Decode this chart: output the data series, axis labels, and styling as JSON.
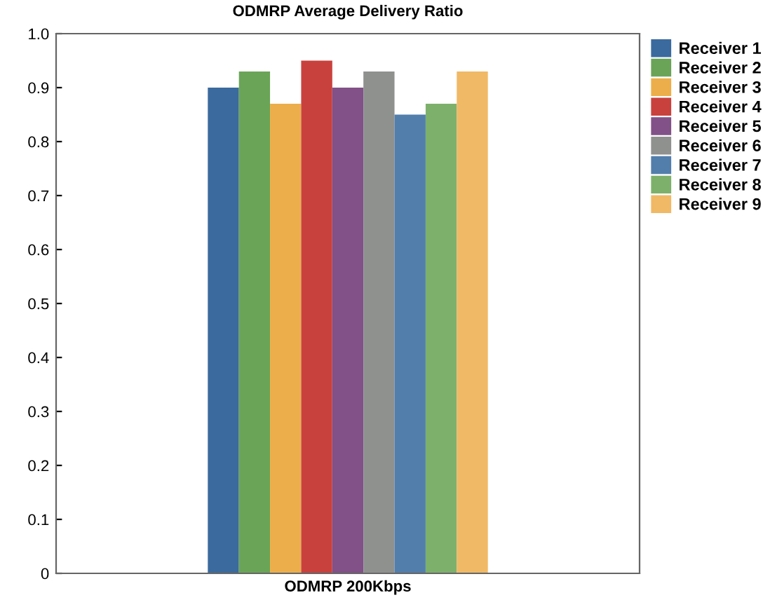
{
  "chart_data": {
    "type": "bar",
    "title": "ODMRP Average Delivery Ratio",
    "categories": [
      "ODMRP 200Kbps"
    ],
    "series": [
      {
        "name": "Receiver 1",
        "color": "#3b6a9e",
        "values": [
          0.9
        ]
      },
      {
        "name": "Receiver 2",
        "color": "#6aa457",
        "values": [
          0.93
        ]
      },
      {
        "name": "Receiver 3",
        "color": "#ecae4a",
        "values": [
          0.87
        ]
      },
      {
        "name": "Receiver 4",
        "color": "#c9413d",
        "values": [
          0.95
        ]
      },
      {
        "name": "Receiver 5",
        "color": "#815188",
        "values": [
          0.9
        ]
      },
      {
        "name": "Receiver 6",
        "color": "#8f918f",
        "values": [
          0.93
        ]
      },
      {
        "name": "Receiver 7",
        "color": "#527eac",
        "values": [
          0.85
        ]
      },
      {
        "name": "Receiver 8",
        "color": "#7db06b",
        "values": [
          0.87
        ]
      },
      {
        "name": "Receiver 9",
        "color": "#f0b965",
        "values": [
          0.93
        ]
      }
    ],
    "ylim": [
      0,
      1.0
    ],
    "yticks": [
      0,
      0.1,
      0.2,
      0.3,
      0.4,
      0.5,
      0.6,
      0.7,
      0.8,
      0.9,
      {
        "value": 1.0,
        "label": "1.0"
      }
    ],
    "legend": "top right"
  }
}
